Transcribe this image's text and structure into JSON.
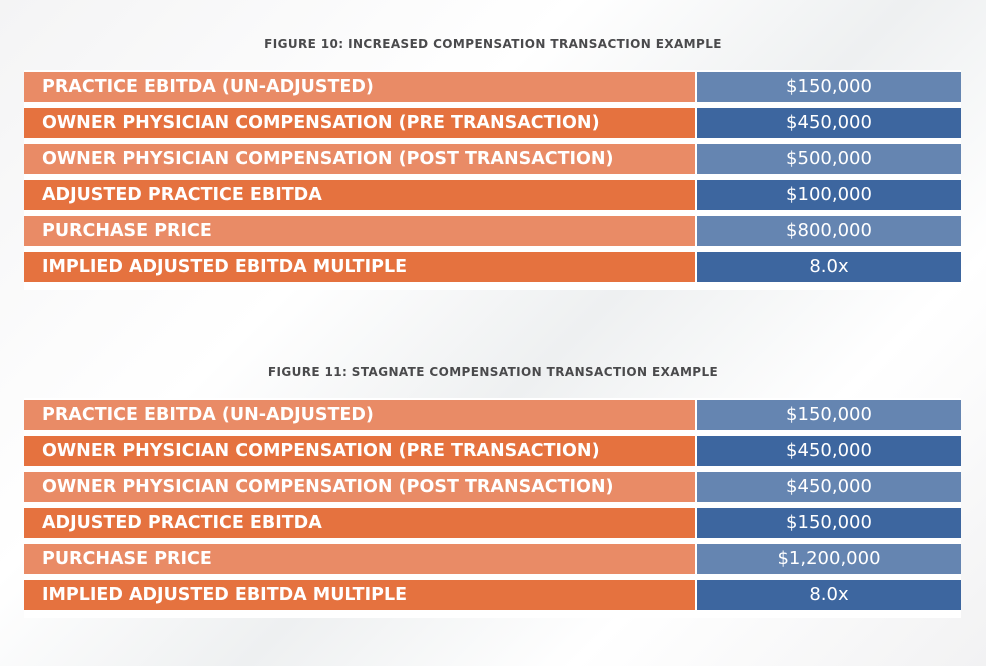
{
  "figures": [
    {
      "title": "FIGURE 10: INCREASED COMPENSATION TRANSACTION EXAMPLE",
      "rows": [
        {
          "label": "PRACTICE EBITDA (UN-ADJUSTED)",
          "value": "$150,000"
        },
        {
          "label": "OWNER PHYSICIAN COMPENSATION (PRE TRANSACTION)",
          "value": "$450,000"
        },
        {
          "label": "OWNER PHYSICIAN COMPENSATION (POST TRANSACTION)",
          "value": "$500,000"
        },
        {
          "label": "ADJUSTED PRACTICE EBITDA",
          "value": "$100,000"
        },
        {
          "label": "PURCHASE PRICE",
          "value": "$800,000"
        },
        {
          "label": "IMPLIED ADJUSTED EBITDA MULTIPLE",
          "value": "8.0x"
        }
      ]
    },
    {
      "title": "FIGURE 11: STAGNATE COMPENSATION TRANSACTION EXAMPLE",
      "rows": [
        {
          "label": "PRACTICE EBITDA (UN-ADJUSTED)",
          "value": "$150,000"
        },
        {
          "label": "OWNER PHYSICIAN COMPENSATION (PRE TRANSACTION)",
          "value": "$450,000"
        },
        {
          "label": "OWNER PHYSICIAN COMPENSATION (POST TRANSACTION)",
          "value": "$450,000"
        },
        {
          "label": "ADJUSTED PRACTICE EBITDA",
          "value": "$150,000"
        },
        {
          "label": "PURCHASE PRICE",
          "value": "$1,200,000"
        },
        {
          "label": "IMPLIED ADJUSTED EBITDA MULTIPLE",
          "value": "8.0x"
        }
      ]
    }
  ],
  "colors": {
    "title_text": "#4a4a4c",
    "label_light": "#e98b66",
    "label_dark": "#e5723f",
    "value_light": "#6585b1",
    "value_dark": "#3d669f"
  }
}
